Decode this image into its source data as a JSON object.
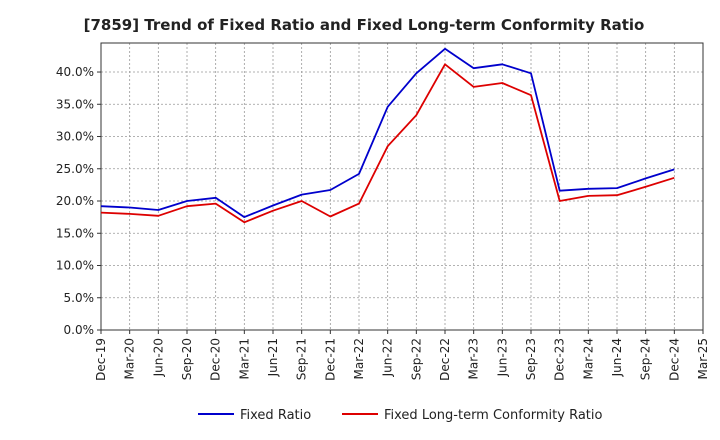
{
  "chart_data": {
    "type": "line",
    "title": "[7859]  Trend of Fixed Ratio and Fixed Long-term Conformity Ratio",
    "xlabel": "",
    "ylabel": "",
    "categories": [
      "Dec-19",
      "Mar-20",
      "Jun-20",
      "Sep-20",
      "Dec-20",
      "Mar-21",
      "Jun-21",
      "Sep-21",
      "Dec-21",
      "Mar-22",
      "Jun-22",
      "Sep-22",
      "Dec-22",
      "Mar-23",
      "Jun-23",
      "Sep-23",
      "Dec-23",
      "Mar-24",
      "Jun-24",
      "Sep-24",
      "Dec-24",
      "Mar-25"
    ],
    "y_ticks": [
      "0.0%",
      "5.0%",
      "10.0%",
      "15.0%",
      "20.0%",
      "25.0%",
      "30.0%",
      "35.0%",
      "40.0%"
    ],
    "ylim": [
      0,
      44.5
    ],
    "grid": true,
    "legend_position": "bottom",
    "series": [
      {
        "name": "Fixed Ratio",
        "color": "#0000cc",
        "values": [
          19.2,
          19.0,
          18.6,
          20.0,
          20.5,
          17.5,
          19.3,
          21.0,
          21.7,
          24.2,
          34.6,
          39.8,
          43.6,
          40.6,
          41.2,
          39.8,
          21.6,
          21.9,
          22.0,
          23.5,
          24.9,
          null
        ]
      },
      {
        "name": "Fixed Long-term Conformity Ratio",
        "color": "#dd0000",
        "values": [
          18.2,
          18.0,
          17.7,
          19.2,
          19.6,
          16.7,
          18.5,
          20.0,
          17.6,
          19.6,
          28.5,
          33.3,
          41.2,
          37.7,
          38.3,
          36.4,
          20.0,
          20.8,
          20.9,
          22.2,
          23.6,
          null
        ]
      }
    ]
  }
}
